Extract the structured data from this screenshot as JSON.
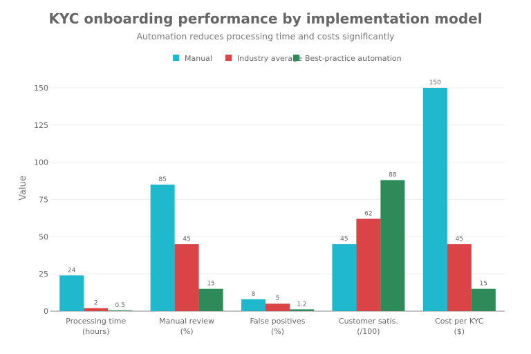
{
  "chart_data": {
    "type": "bar",
    "title": "KYC onboarding performance by implementation model",
    "subtitle": "Automation reduces processing time and costs significantly",
    "xlabel": "",
    "ylabel": "Value",
    "ylim": [
      0,
      160
    ],
    "yticks": [
      0,
      25,
      50,
      75,
      100,
      125,
      150
    ],
    "grid": true,
    "legend_position": "top-center",
    "categories": [
      [
        "Processing time",
        "(hours)"
      ],
      [
        "Manual review",
        "(%)"
      ],
      [
        "False positives",
        "(%)"
      ],
      [
        "Customer satis.",
        "(/100)"
      ],
      [
        "Cost per KYC",
        "($)"
      ]
    ],
    "series": [
      {
        "name": "Manual",
        "color": "#20b8cd",
        "values": [
          24,
          85,
          8,
          45,
          150
        ],
        "labels": [
          "24",
          "85",
          "8",
          "45",
          "150"
        ]
      },
      {
        "name": "Industry average",
        "color": "#da4446",
        "values": [
          2,
          45,
          5,
          62,
          45
        ],
        "labels": [
          "2",
          "45",
          "5",
          "62",
          "45"
        ]
      },
      {
        "name": "Best-practice automation",
        "color": "#2e8a58",
        "values": [
          0.5,
          15,
          1.2,
          88,
          15
        ],
        "labels": [
          "0.5",
          "15",
          "1.2",
          "88",
          "15"
        ]
      }
    ]
  }
}
